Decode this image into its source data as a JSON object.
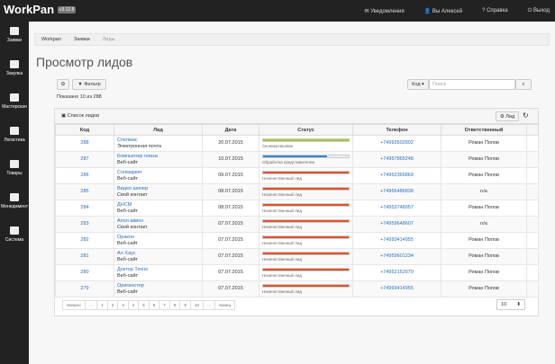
{
  "header": {
    "logo": "WorkPan",
    "version": "v3.12.8",
    "menu": [
      "Уведомления",
      "Вы Алексей",
      "Справка",
      "Выход"
    ]
  },
  "sidebar": [
    "Заявки",
    "Закупка",
    "Мастерская",
    "Логистика",
    "Товары",
    "Менеджмент",
    "Система"
  ],
  "breadcrumb": [
    "Workpan",
    "Заявки",
    "Лиды"
  ],
  "page_title": "Просмотр лидов",
  "toolbar": {
    "filter": "Фильтр",
    "search_field": "Код",
    "search_placeholder": "Поиск"
  },
  "summary": "Показано 10 из 288",
  "panel": {
    "title": "Список лидов",
    "add_button": "Лид"
  },
  "table": {
    "columns": [
      "Код",
      "Лид",
      "Дата",
      "Статус",
      "Телефон",
      "Ответственный"
    ],
    "rows": [
      {
        "id": 288,
        "lead": "Спелмас",
        "source": "Электронная почта",
        "date": "20.07.2015",
        "status": "Сконвертирован",
        "status_color": "#a5c63b",
        "progress": 100,
        "phone": "+74993502802",
        "owner": "Роман Попов"
      },
      {
        "id": 287,
        "lead": "Компьютер плаза",
        "source": "Веб-сайт",
        "date": "10.07.2015",
        "status": "Обработка представителем",
        "status_color": "#3a87c8",
        "progress": 75,
        "phone": "+74957865248",
        "owner": "Роман Попов"
      },
      {
        "id": 286,
        "lead": "Солмаркет",
        "source": "Веб-сайт",
        "date": "09.07.2015",
        "status": "Некачественный лид",
        "status_color": "#e0532b",
        "progress": 100,
        "phone": "+74952365869",
        "owner": "Роман Попов"
      },
      {
        "id": 285,
        "lead": "Видео шопер",
        "source": "Свой контакт",
        "date": "08.07.2015",
        "status": "Некачественный лид",
        "status_color": "#e0532b",
        "progress": 100,
        "phone": "+74956486838",
        "owner": "n/a"
      },
      {
        "id": 284,
        "lead": "ДНСМ",
        "source": "Веб-сайт",
        "date": "08.07.2015",
        "status": "Некачественный лид",
        "status_color": "#e0532b",
        "progress": 100,
        "phone": "+74953748057",
        "owner": "Роман Попов"
      },
      {
        "id": 283,
        "lead": "Апол аввон",
        "source": "Свой контакт",
        "date": "07.07.2015",
        "status": "Некачественный лид",
        "status_color": "#e0532b",
        "progress": 100,
        "phone": "+74959648607",
        "owner": "n/a"
      },
      {
        "id": 282,
        "lead": "Оракон",
        "source": "Веб-сайт",
        "date": "07.07.2015",
        "status": "Некачественный лид",
        "status_color": "#e0532b",
        "progress": 100,
        "phone": "+74993414955",
        "owner": "Роман Попов"
      },
      {
        "id": 281,
        "lead": "Ал Хаус",
        "source": "Веб-сайт",
        "date": "07.07.2015",
        "status": "Некачественный лид",
        "status_color": "#e0532b",
        "progress": 100,
        "phone": "+74959601234",
        "owner": "Роман Попов"
      },
      {
        "id": 280,
        "lead": "Доктор Техно",
        "source": "Веб-сайт",
        "date": "07.07.2015",
        "status": "Некачественный лид",
        "status_color": "#e0532b",
        "progress": 100,
        "phone": "+74952152079",
        "owner": "Роман Попов"
      },
      {
        "id": 279,
        "lead": "Оригинстер",
        "source": "Веб-сайт",
        "date": "07.07.2015",
        "status": "Некачественный лид",
        "status_color": "#e0532b",
        "progress": 100,
        "phone": "+74993414955",
        "owner": "Роман Попов"
      }
    ]
  },
  "pagination": {
    "first": "Начало",
    "prev": "…",
    "pages": [
      1,
      2,
      3,
      4,
      5,
      6,
      7,
      8,
      9,
      10
    ],
    "ellipsis": "…",
    "last": "Конец"
  },
  "page_size": "10"
}
